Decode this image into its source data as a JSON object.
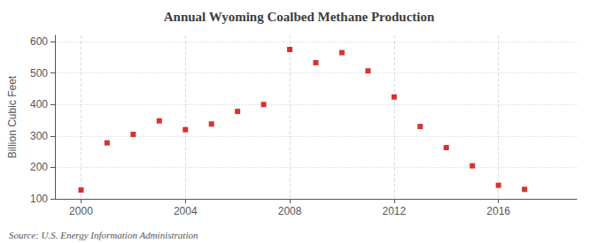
{
  "chart_data": {
    "type": "scatter",
    "title": "Annual Wyoming Coalbed Methane Production",
    "ylabel": "Billion Cubic Feet",
    "annotations": [
      "Source: U.S. Energy Information Administration"
    ],
    "x": [
      2000,
      2001,
      2002,
      2003,
      2004,
      2005,
      2006,
      2007,
      2008,
      2009,
      2010,
      2011,
      2012,
      2013,
      2014,
      2015,
      2016,
      2017
    ],
    "values": [
      128,
      278,
      305,
      348,
      320,
      338,
      378,
      400,
      575,
      533,
      565,
      507,
      424,
      330,
      263,
      205,
      143,
      130
    ],
    "color": "#cc0000",
    "marker": "square",
    "xlim": [
      1999.0,
      2019.0
    ],
    "xticks": [
      2000,
      2004,
      2008,
      2012,
      2016
    ],
    "ylim": [
      100,
      620
    ],
    "yticks": [
      100,
      200,
      300,
      400,
      500,
      600
    ],
    "grid": true
  }
}
